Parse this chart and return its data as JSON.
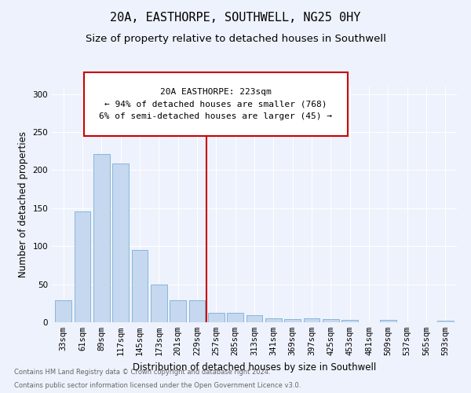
{
  "title": "20A, EASTHORPE, SOUTHWELL, NG25 0HY",
  "subtitle": "Size of property relative to detached houses in Southwell",
  "xlabel": "Distribution of detached houses by size in Southwell",
  "ylabel": "Number of detached properties",
  "footnote1": "Contains HM Land Registry data © Crown copyright and database right 2024.",
  "footnote2": "Contains public sector information licensed under the Open Government Licence v3.0.",
  "categories": [
    "33sqm",
    "61sqm",
    "89sqm",
    "117sqm",
    "145sqm",
    "173sqm",
    "201sqm",
    "229sqm",
    "257sqm",
    "285sqm",
    "313sqm",
    "341sqm",
    "369sqm",
    "397sqm",
    "425sqm",
    "453sqm",
    "481sqm",
    "509sqm",
    "537sqm",
    "565sqm",
    "593sqm"
  ],
  "values": [
    29,
    146,
    221,
    209,
    95,
    50,
    29,
    29,
    12,
    12,
    9,
    5,
    4,
    5,
    4,
    3,
    0,
    3,
    0,
    0,
    2
  ],
  "bar_color": "#c5d8ef",
  "bar_edge_color": "#7aafd4",
  "vline_x": 7.5,
  "vline_color": "#cc0000",
  "annotation_text": "20A EASTHORPE: 223sqm\n← 94% of detached houses are smaller (768)\n6% of semi-detached houses are larger (45) →",
  "annotation_box_facecolor": "#ffffff",
  "annotation_box_edgecolor": "#cc0000",
  "ylim": [
    0,
    310
  ],
  "yticks": [
    0,
    50,
    100,
    150,
    200,
    250,
    300
  ],
  "bg_color": "#eef2fc",
  "plot_bg": "#eef2fc",
  "grid_color": "#ffffff",
  "title_fontsize": 11,
  "subtitle_fontsize": 9.5,
  "xlabel_fontsize": 8.5,
  "ylabel_fontsize": 8.5,
  "tick_fontsize": 7.5,
  "annot_fontsize": 8,
  "footnote_fontsize": 6,
  "footnote_color": "#666666"
}
